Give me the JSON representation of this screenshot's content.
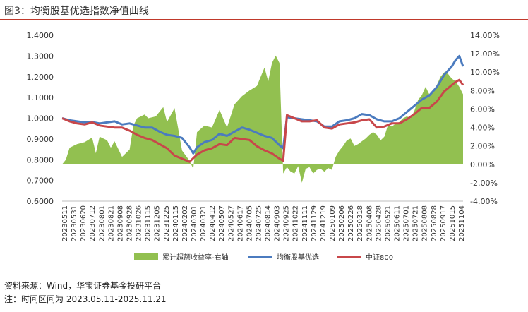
{
  "header": {
    "figure_title": "图3：均衡股基优选指数净值曲线"
  },
  "footer": {
    "source": "资料来源：Wind，华宝证券基金投研平台",
    "note": "注：时间区间为 2023.05.11-2025.11.21"
  },
  "colors": {
    "excess": "#92c050",
    "balanced": "#4b7bbf",
    "csi800": "#c8474a",
    "title_rule": "#c0392b"
  },
  "chart_data": {
    "type": "line",
    "title": "",
    "legend_position": "bottom",
    "y_left": {
      "range": [
        0.6,
        1.4
      ],
      "ticks": [
        "0.6000",
        "0.7000",
        "0.8000",
        "0.9000",
        "1.0000",
        "1.1000",
        "1.2000",
        "1.3000",
        "1.4000"
      ]
    },
    "y_right": {
      "range": [
        -4,
        14
      ],
      "ticks": [
        "-4.00%",
        "-2.00%",
        "0.00%",
        "2.00%",
        "4.00%",
        "6.00%",
        "8.00%",
        "10.00%",
        "12.00%",
        "14.00%"
      ]
    },
    "x_tick_labels": [
      "20230511",
      "20230531",
      "20230620",
      "20230712",
      "20230801",
      "20230821",
      "20230908",
      "20230928",
      "20231026",
      "20231115",
      "20231205",
      "20231225",
      "20240115",
      "20240202",
      "20240301",
      "20240321",
      "20240412",
      "20240507",
      "20240527",
      "20240617",
      "20240705",
      "20240725",
      "20240814",
      "20240903",
      "20240925",
      "20241022",
      "20241111",
      "20241129",
      "20241219",
      "20250109",
      "20250206",
      "20250226",
      "20250318",
      "20250408",
      "20250428",
      "20250521",
      "20250611",
      "20250701",
      "20250721",
      "20250808",
      "20250828",
      "20250917",
      "20251015",
      "20251104"
    ],
    "series": [
      {
        "name": "累计超额收益率-右轴",
        "kind": "area",
        "axis": "right",
        "points": [
          [
            0,
            0
          ],
          [
            1,
            0.5
          ],
          [
            2,
            1.8
          ],
          [
            4,
            2.2
          ],
          [
            6,
            2.4
          ],
          [
            8,
            2.9
          ],
          [
            9,
            1.2
          ],
          [
            10,
            3.0
          ],
          [
            12,
            2.6
          ],
          [
            13,
            1.8
          ],
          [
            14,
            2.5
          ],
          [
            16,
            0.8
          ],
          [
            17,
            1.2
          ],
          [
            18,
            1.6
          ],
          [
            19,
            4.2
          ],
          [
            20,
            5.0
          ],
          [
            22,
            5.4
          ],
          [
            23,
            5.0
          ],
          [
            25,
            5.2
          ],
          [
            27,
            6.2
          ],
          [
            28,
            4.6
          ],
          [
            30,
            6.1
          ],
          [
            32,
            1.5
          ],
          [
            34,
            0.4
          ],
          [
            35,
            -0.5
          ],
          [
            36,
            3.5
          ],
          [
            38,
            4.2
          ],
          [
            40,
            4.0
          ],
          [
            42,
            5.9
          ],
          [
            44,
            4.0
          ],
          [
            46,
            6.5
          ],
          [
            48,
            7.4
          ],
          [
            50,
            8.0
          ],
          [
            52,
            8.5
          ],
          [
            54,
            10.5
          ],
          [
            55,
            9.0
          ],
          [
            56,
            11.0
          ],
          [
            57,
            11.8
          ],
          [
            58,
            11.0
          ],
          [
            59,
            -1.0
          ],
          [
            60,
            -0.3
          ],
          [
            61,
            -0.8
          ],
          [
            62,
            -1.0
          ],
          [
            63,
            -0.2
          ],
          [
            64,
            -2.0
          ],
          [
            65,
            -0.5
          ],
          [
            66,
            -0.3
          ],
          [
            67,
            -1.0
          ],
          [
            68,
            -0.6
          ],
          [
            69,
            -0.5
          ],
          [
            70,
            -0.8
          ],
          [
            71,
            -0.4
          ],
          [
            72,
            -0.6
          ],
          [
            73,
            0.8
          ],
          [
            74,
            1.5
          ],
          [
            75,
            2.0
          ],
          [
            76,
            2.6
          ],
          [
            77,
            2.8
          ],
          [
            78,
            2.0
          ],
          [
            79,
            2.2
          ],
          [
            80,
            2.5
          ],
          [
            81,
            2.8
          ],
          [
            82,
            3.2
          ],
          [
            83,
            3.5
          ],
          [
            84,
            3.2
          ],
          [
            85,
            2.6
          ],
          [
            86,
            3.0
          ],
          [
            87,
            4.3
          ],
          [
            88,
            4.1
          ],
          [
            89,
            4.4
          ],
          [
            90,
            4.6
          ],
          [
            91,
            5.0
          ],
          [
            92,
            5.2
          ],
          [
            93,
            5.0
          ],
          [
            94,
            5.8
          ],
          [
            95,
            7.0
          ],
          [
            96,
            7.5
          ],
          [
            97,
            8.4
          ],
          [
            98,
            7.6
          ],
          [
            99,
            7.8
          ],
          [
            100,
            8.6
          ],
          [
            101,
            9.5
          ],
          [
            102,
            10.0
          ],
          [
            103,
            9.8
          ],
          [
            104,
            9.3
          ],
          [
            105,
            9.0
          ],
          [
            106,
            8.4
          ],
          [
            107,
            7.6
          ]
        ]
      },
      {
        "name": "均衡股基优选",
        "kind": "line",
        "axis": "left",
        "points": [
          [
            0,
            1.0
          ],
          [
            2,
            0.99
          ],
          [
            4,
            0.985
          ],
          [
            6,
            0.98
          ],
          [
            8,
            0.982
          ],
          [
            10,
            0.975
          ],
          [
            12,
            0.98
          ],
          [
            14,
            0.985
          ],
          [
            16,
            0.97
          ],
          [
            18,
            0.975
          ],
          [
            20,
            0.965
          ],
          [
            22,
            0.955
          ],
          [
            24,
            0.955
          ],
          [
            26,
            0.935
          ],
          [
            28,
            0.92
          ],
          [
            30,
            0.915
          ],
          [
            32,
            0.905
          ],
          [
            34,
            0.86
          ],
          [
            35,
            0.83
          ],
          [
            36,
            0.86
          ],
          [
            38,
            0.885
          ],
          [
            40,
            0.895
          ],
          [
            42,
            0.925
          ],
          [
            44,
            0.915
          ],
          [
            46,
            0.935
          ],
          [
            48,
            0.955
          ],
          [
            50,
            0.945
          ],
          [
            52,
            0.93
          ],
          [
            54,
            0.915
          ],
          [
            56,
            0.905
          ],
          [
            58,
            0.87
          ],
          [
            59,
            0.855
          ],
          [
            60,
            1.005
          ],
          [
            62,
            1.0
          ],
          [
            64,
            0.995
          ],
          [
            66,
            0.99
          ],
          [
            68,
            0.985
          ],
          [
            70,
            0.96
          ],
          [
            72,
            0.96
          ],
          [
            74,
            0.985
          ],
          [
            76,
            0.99
          ],
          [
            78,
            1.0
          ],
          [
            80,
            1.02
          ],
          [
            82,
            1.015
          ],
          [
            84,
            0.995
          ],
          [
            86,
            0.985
          ],
          [
            88,
            0.985
          ],
          [
            90,
            1.0
          ],
          [
            92,
            1.03
          ],
          [
            94,
            1.06
          ],
          [
            96,
            1.09
          ],
          [
            98,
            1.11
          ],
          [
            100,
            1.15
          ],
          [
            102,
            1.21
          ],
          [
            104,
            1.25
          ],
          [
            105,
            1.28
          ],
          [
            106,
            1.3
          ],
          [
            107,
            1.25
          ]
        ]
      },
      {
        "name": "中证800",
        "kind": "line",
        "axis": "left",
        "points": [
          [
            0,
            1.0
          ],
          [
            2,
            0.985
          ],
          [
            4,
            0.975
          ],
          [
            6,
            0.97
          ],
          [
            8,
            0.98
          ],
          [
            10,
            0.965
          ],
          [
            12,
            0.96
          ],
          [
            14,
            0.955
          ],
          [
            16,
            0.955
          ],
          [
            18,
            0.94
          ],
          [
            20,
            0.92
          ],
          [
            22,
            0.905
          ],
          [
            24,
            0.895
          ],
          [
            26,
            0.875
          ],
          [
            28,
            0.855
          ],
          [
            30,
            0.82
          ],
          [
            32,
            0.805
          ],
          [
            34,
            0.79
          ],
          [
            36,
            0.825
          ],
          [
            38,
            0.845
          ],
          [
            40,
            0.855
          ],
          [
            42,
            0.875
          ],
          [
            44,
            0.87
          ],
          [
            46,
            0.905
          ],
          [
            48,
            0.9
          ],
          [
            50,
            0.895
          ],
          [
            52,
            0.865
          ],
          [
            54,
            0.845
          ],
          [
            56,
            0.83
          ],
          [
            58,
            0.805
          ],
          [
            59,
            0.795
          ],
          [
            60,
            1.015
          ],
          [
            62,
            1.0
          ],
          [
            64,
            0.985
          ],
          [
            66,
            0.985
          ],
          [
            68,
            0.99
          ],
          [
            70,
            0.955
          ],
          [
            72,
            0.95
          ],
          [
            74,
            0.97
          ],
          [
            76,
            0.975
          ],
          [
            78,
            0.98
          ],
          [
            80,
            0.99
          ],
          [
            82,
            0.995
          ],
          [
            84,
            0.955
          ],
          [
            86,
            0.96
          ],
          [
            88,
            0.975
          ],
          [
            90,
            0.975
          ],
          [
            92,
            0.995
          ],
          [
            94,
            1.02
          ],
          [
            96,
            1.05
          ],
          [
            98,
            1.05
          ],
          [
            100,
            1.08
          ],
          [
            102,
            1.13
          ],
          [
            104,
            1.16
          ],
          [
            105,
            1.175
          ],
          [
            106,
            1.185
          ],
          [
            107,
            1.16
          ]
        ]
      }
    ]
  }
}
